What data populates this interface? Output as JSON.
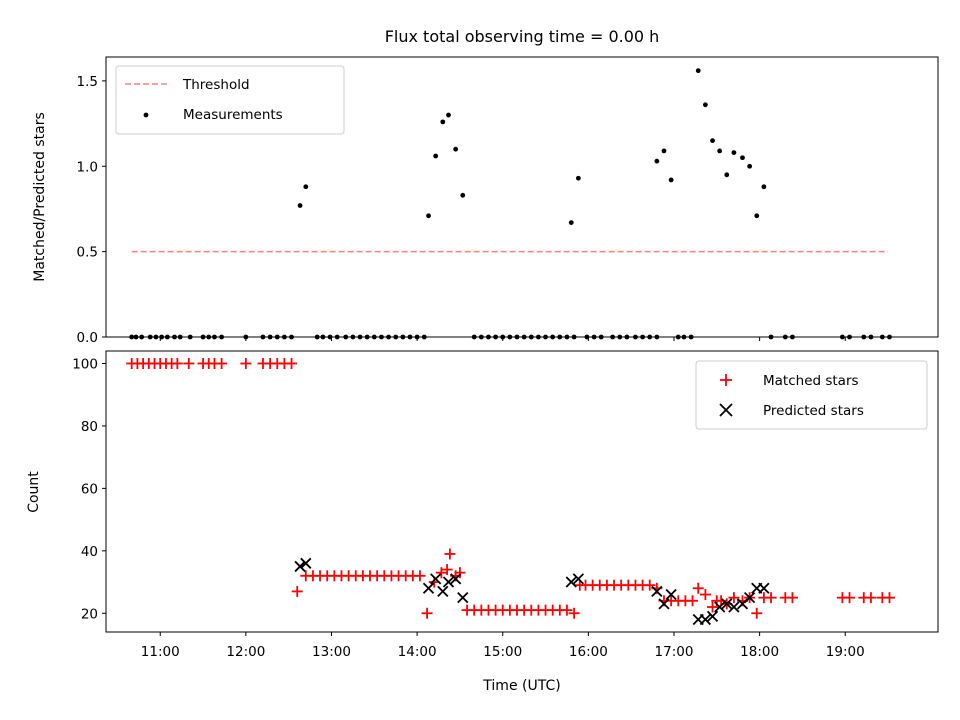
{
  "chart_data": [
    {
      "type": "scatter",
      "title": "Flux total observing time = 0.00 h",
      "xlabel": "",
      "ylabel": "Matched/Predicted stars",
      "xlim": [
        "10:22",
        "20:05"
      ],
      "ylim": [
        0,
        1.64
      ],
      "yticks": [
        0.0,
        0.5,
        1.0,
        1.5
      ],
      "ytick_labels": [
        "0.0",
        "0.5",
        "1.0",
        "1.5"
      ],
      "grid": false,
      "legend_position": "upper left",
      "series": [
        {
          "name": "Threshold",
          "kind": "line",
          "style": "dashed",
          "color": "#ff7f7f",
          "points": [
            [
              "10:40",
              0.5
            ],
            [
              "19:30",
              0.5
            ]
          ]
        },
        {
          "name": "Measurements",
          "kind": "scatter",
          "marker": "dot",
          "color": "#000000",
          "points": [
            [
              "10:40",
              0
            ],
            [
              "10:43",
              0
            ],
            [
              "10:47",
              0
            ],
            [
              "10:53",
              0
            ],
            [
              "10:57",
              0
            ],
            [
              "11:01",
              0
            ],
            [
              "11:05",
              0
            ],
            [
              "11:10",
              0
            ],
            [
              "11:14",
              0
            ],
            [
              "11:21",
              0
            ],
            [
              "11:30",
              0
            ],
            [
              "11:34",
              0
            ],
            [
              "11:38",
              0
            ],
            [
              "11:43",
              0
            ],
            [
              "12:00",
              0
            ],
            [
              "12:12",
              0
            ],
            [
              "12:17",
              0
            ],
            [
              "12:22",
              0
            ],
            [
              "12:27",
              0
            ],
            [
              "12:32",
              0
            ],
            [
              "12:38",
              0.77
            ],
            [
              "12:42",
              0.88
            ],
            [
              "12:50",
              0
            ],
            [
              "12:54",
              0
            ],
            [
              "12:59",
              0
            ],
            [
              "13:04",
              0
            ],
            [
              "13:10",
              0
            ],
            [
              "13:15",
              0
            ],
            [
              "13:20",
              0
            ],
            [
              "13:25",
              0
            ],
            [
              "13:30",
              0
            ],
            [
              "13:35",
              0
            ],
            [
              "13:40",
              0
            ],
            [
              "13:45",
              0
            ],
            [
              "13:50",
              0
            ],
            [
              "13:55",
              0
            ],
            [
              "14:00",
              0
            ],
            [
              "14:05",
              0
            ],
            [
              "14:08",
              0.71
            ],
            [
              "14:13",
              1.06
            ],
            [
              "14:18",
              1.26
            ],
            [
              "14:22",
              1.3
            ],
            [
              "14:27",
              1.1
            ],
            [
              "14:32",
              0.83
            ],
            [
              "14:40",
              0
            ],
            [
              "14:45",
              0
            ],
            [
              "14:50",
              0
            ],
            [
              "14:55",
              0
            ],
            [
              "15:00",
              0
            ],
            [
              "15:05",
              0
            ],
            [
              "15:10",
              0
            ],
            [
              "15:15",
              0
            ],
            [
              "15:20",
              0
            ],
            [
              "15:25",
              0
            ],
            [
              "15:30",
              0
            ],
            [
              "15:35",
              0
            ],
            [
              "15:40",
              0
            ],
            [
              "15:45",
              0
            ],
            [
              "15:50",
              0
            ],
            [
              "15:48",
              0.67
            ],
            [
              "15:53",
              0.93
            ],
            [
              "15:59",
              0
            ],
            [
              "16:04",
              0
            ],
            [
              "16:09",
              0
            ],
            [
              "16:17",
              0
            ],
            [
              "16:22",
              0
            ],
            [
              "16:27",
              0
            ],
            [
              "16:33",
              0
            ],
            [
              "16:38",
              0
            ],
            [
              "16:43",
              0
            ],
            [
              "16:48",
              0
            ],
            [
              "16:48",
              1.03
            ],
            [
              "16:53",
              1.09
            ],
            [
              "16:58",
              0.92
            ],
            [
              "17:03",
              0
            ],
            [
              "17:07",
              0
            ],
            [
              "17:12",
              0
            ],
            [
              "17:17",
              1.56
            ],
            [
              "17:22",
              1.36
            ],
            [
              "17:27",
              1.15
            ],
            [
              "17:32",
              1.09
            ],
            [
              "17:37",
              0.95
            ],
            [
              "17:42",
              1.08
            ],
            [
              "17:48",
              1.05
            ],
            [
              "17:53",
              1.0
            ],
            [
              "17:58",
              0.71
            ],
            [
              "18:03",
              0.88
            ],
            [
              "18:08",
              0
            ],
            [
              "18:18",
              0
            ],
            [
              "18:23",
              0
            ],
            [
              "18:58",
              0
            ],
            [
              "19:03",
              0
            ],
            [
              "19:13",
              0
            ],
            [
              "19:18",
              0
            ],
            [
              "19:26",
              0
            ],
            [
              "19:31",
              0
            ]
          ]
        }
      ]
    },
    {
      "type": "scatter",
      "title": "",
      "xlabel": "Time (UTC)",
      "ylabel": "Count",
      "xlim": [
        "10:22",
        "20:05"
      ],
      "ylim": [
        14,
        104
      ],
      "yticks": [
        20,
        40,
        60,
        80,
        100
      ],
      "ytick_labels": [
        "20",
        "40",
        "60",
        "80",
        "100"
      ],
      "xticks": [
        "11:00",
        "12:00",
        "13:00",
        "14:00",
        "15:00",
        "16:00",
        "17:00",
        "18:00",
        "19:00"
      ],
      "grid": false,
      "legend_position": "upper right",
      "series": [
        {
          "name": "Matched stars",
          "kind": "scatter",
          "marker": "plus",
          "color": "#ff0000",
          "points": [
            [
              "10:40",
              100
            ],
            [
              "10:44",
              100
            ],
            [
              "10:48",
              100
            ],
            [
              "10:52",
              100
            ],
            [
              "10:56",
              100
            ],
            [
              "11:00",
              100
            ],
            [
              "11:04",
              100
            ],
            [
              "11:08",
              100
            ],
            [
              "11:12",
              100
            ],
            [
              "11:20",
              100
            ],
            [
              "11:30",
              100
            ],
            [
              "11:34",
              100
            ],
            [
              "11:38",
              100
            ],
            [
              "11:43",
              100
            ],
            [
              "12:00",
              100
            ],
            [
              "12:12",
              100
            ],
            [
              "12:17",
              100
            ],
            [
              "12:22",
              100
            ],
            [
              "12:27",
              100
            ],
            [
              "12:32",
              100
            ],
            [
              "12:36",
              27
            ],
            [
              "12:42",
              32
            ],
            [
              "12:47",
              32
            ],
            [
              "12:52",
              32
            ],
            [
              "12:57",
              32
            ],
            [
              "13:02",
              32
            ],
            [
              "13:07",
              32
            ],
            [
              "13:12",
              32
            ],
            [
              "13:17",
              32
            ],
            [
              "13:22",
              32
            ],
            [
              "13:27",
              32
            ],
            [
              "13:32",
              32
            ],
            [
              "13:37",
              32
            ],
            [
              "13:42",
              32
            ],
            [
              "13:47",
              32
            ],
            [
              "13:52",
              32
            ],
            [
              "13:57",
              32
            ],
            [
              "14:02",
              32
            ],
            [
              "14:07",
              20
            ],
            [
              "14:12",
              30
            ],
            [
              "14:17",
              33
            ],
            [
              "14:21",
              34
            ],
            [
              "14:23",
              39
            ],
            [
              "14:27",
              32
            ],
            [
              "14:30",
              33
            ],
            [
              "14:35",
              21
            ],
            [
              "14:40",
              21
            ],
            [
              "14:45",
              21
            ],
            [
              "14:50",
              21
            ],
            [
              "14:55",
              21
            ],
            [
              "15:00",
              21
            ],
            [
              "15:05",
              21
            ],
            [
              "15:10",
              21
            ],
            [
              "15:15",
              21
            ],
            [
              "15:20",
              21
            ],
            [
              "15:25",
              21
            ],
            [
              "15:30",
              21
            ],
            [
              "15:35",
              21
            ],
            [
              "15:40",
              21
            ],
            [
              "15:45",
              21
            ],
            [
              "15:50",
              20
            ],
            [
              "15:54",
              29
            ],
            [
              "15:58",
              29
            ],
            [
              "16:03",
              29
            ],
            [
              "16:08",
              29
            ],
            [
              "16:13",
              29
            ],
            [
              "16:18",
              29
            ],
            [
              "16:23",
              29
            ],
            [
              "16:28",
              29
            ],
            [
              "16:33",
              29
            ],
            [
              "16:38",
              29
            ],
            [
              "16:43",
              29
            ],
            [
              "16:48",
              28
            ],
            [
              "16:53",
              24
            ],
            [
              "16:58",
              24
            ],
            [
              "17:03",
              24
            ],
            [
              "17:08",
              24
            ],
            [
              "17:13",
              24
            ],
            [
              "17:17",
              28
            ],
            [
              "17:22",
              26
            ],
            [
              "17:27",
              22
            ],
            [
              "17:30",
              24
            ],
            [
              "17:33",
              24
            ],
            [
              "17:37",
              23
            ],
            [
              "17:42",
              25
            ],
            [
              "17:48",
              24
            ],
            [
              "17:53",
              25
            ],
            [
              "17:58",
              20
            ],
            [
              "18:03",
              25
            ],
            [
              "18:08",
              25
            ],
            [
              "18:18",
              25
            ],
            [
              "18:23",
              25
            ],
            [
              "18:58",
              25
            ],
            [
              "19:03",
              25
            ],
            [
              "19:13",
              25
            ],
            [
              "19:18",
              25
            ],
            [
              "19:26",
              25
            ],
            [
              "19:31",
              25
            ]
          ]
        },
        {
          "name": "Predicted stars",
          "kind": "scatter",
          "marker": "x",
          "color": "#000000",
          "points": [
            [
              "12:38",
              35
            ],
            [
              "12:42",
              36
            ],
            [
              "14:08",
              28
            ],
            [
              "14:13",
              31
            ],
            [
              "14:18",
              27
            ],
            [
              "14:22",
              30
            ],
            [
              "14:27",
              31
            ],
            [
              "14:32",
              25
            ],
            [
              "15:48",
              30
            ],
            [
              "15:53",
              31
            ],
            [
              "16:48",
              27
            ],
            [
              "16:53",
              23
            ],
            [
              "16:58",
              26
            ],
            [
              "17:17",
              18
            ],
            [
              "17:22",
              18
            ],
            [
              "17:27",
              19
            ],
            [
              "17:32",
              22
            ],
            [
              "17:37",
              23
            ],
            [
              "17:42",
              22
            ],
            [
              "17:48",
              23
            ],
            [
              "17:53",
              25
            ],
            [
              "17:58",
              28
            ],
            [
              "18:03",
              28
            ]
          ]
        }
      ]
    }
  ]
}
